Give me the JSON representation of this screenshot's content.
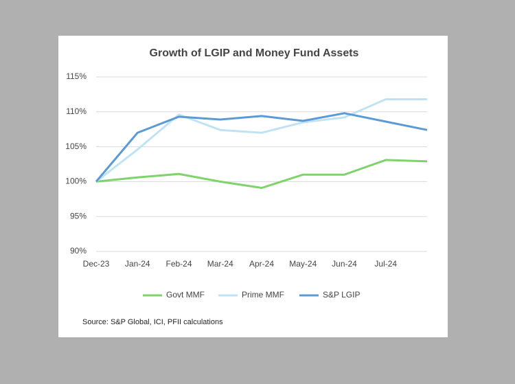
{
  "chart_data": {
    "type": "line",
    "title": "Growth of LGIP and Money Fund Assets",
    "categories": [
      "Dec-23",
      "Jan-24",
      "Feb-24",
      "Mar-24",
      "Apr-24",
      "May-24",
      "Jun-24",
      "Jul-24",
      null
    ],
    "series": [
      {
        "name": "Govt MMF",
        "color": "#7fd36b",
        "values": [
          100,
          100.6,
          101.1,
          100,
          99.1,
          101,
          101,
          103.1,
          102.9
        ]
      },
      {
        "name": "Prime MMF",
        "color": "#bfe3f5",
        "values": [
          100,
          104.6,
          109.6,
          107.4,
          107,
          108.5,
          109.2,
          111.8,
          111.8
        ]
      },
      {
        "name": "S&P LGIP",
        "color": "#5b9bd5",
        "values": [
          100,
          107,
          109.3,
          108.9,
          109.4,
          108.7,
          109.8,
          108.6,
          107.4
        ]
      }
    ],
    "ylim": [
      90,
      115
    ],
    "yticks": [
      {
        "value": 90,
        "label": "90%"
      },
      {
        "value": 95,
        "label": "95%"
      },
      {
        "value": 100,
        "label": "100%"
      },
      {
        "value": 105,
        "label": "105%"
      },
      {
        "value": 110,
        "label": "110%"
      },
      {
        "value": 115,
        "label": "115%"
      }
    ],
    "grid": true,
    "legend": "bottom",
    "source": "Source: S&P Global, ICI, PFII calculations"
  }
}
